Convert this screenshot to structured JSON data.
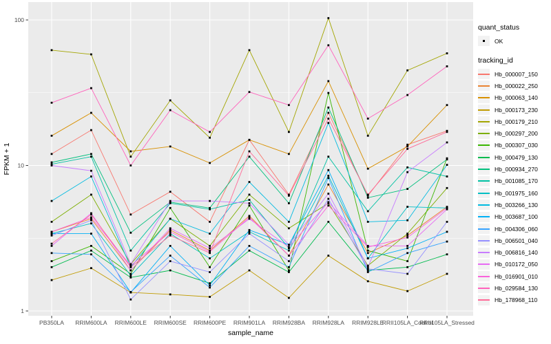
{
  "figure": {
    "y_axis_title": "FPKM + 1",
    "x_axis_title": "sample_name"
  },
  "legend": {
    "quant_status_title": "quant_status",
    "quant_status_items": [
      {
        "label": "OK",
        "marker": "black-point-icon"
      }
    ],
    "tracking_id_title": "tracking_id"
  },
  "chart_data": {
    "type": "line",
    "x_type": "categorical",
    "y_scale": "log10",
    "title": "",
    "xlabel": "sample_name",
    "ylabel": "FPKM + 1",
    "y_ticks": [
      1,
      10,
      100
    ],
    "y_minor_gridlines": [
      3.162,
      31.623
    ],
    "ylim": [
      1,
      126
    ],
    "grid": "on",
    "legend_position": "right",
    "panel_background": "#EBEBEB",
    "gridline_color": "#FFFFFF",
    "point_marker_color": "#000000",
    "categories": [
      "PB350LA",
      "RRIM600LA",
      "RRIM600LE",
      "RRIM600SE",
      "RRIM600PE",
      "RRIM901LA",
      "RRIM928BA",
      "RRIM928LA",
      "RRIM928LE",
      "RRII105LA_Control",
      "RRII105LA_Stressed"
    ],
    "series": [
      {
        "name": "Hb_000007_150",
        "color": "#F8766D",
        "values": [
          12,
          17.5,
          4.6,
          6.6,
          4.1,
          15,
          6.3,
          23,
          6.2,
          13.9,
          17.3
        ]
      },
      {
        "name": "Hb_000022_250",
        "color": "#EA8331",
        "values": [
          3.5,
          4.3,
          1.9,
          3.6,
          2.6,
          4.5,
          2.4,
          7.4,
          2.5,
          3.3,
          5.2
        ]
      },
      {
        "name": "Hb_000063_140",
        "color": "#D89000",
        "values": [
          16,
          23,
          12.5,
          13.5,
          10.4,
          15,
          12,
          38,
          9.5,
          13.5,
          26
        ]
      },
      {
        "name": "Hb_000173_230",
        "color": "#C09B00",
        "values": [
          1.63,
          1.97,
          1.34,
          1.3,
          1.25,
          1.9,
          1.23,
          2.4,
          1.6,
          1.37,
          1.8
        ]
      },
      {
        "name": "Hb_000179_210",
        "color": "#A3A500",
        "values": [
          62,
          58,
          11.5,
          28,
          15.5,
          62,
          17,
          103,
          16,
          45,
          59
        ]
      },
      {
        "name": "Hb_000297_200",
        "color": "#7CAE00",
        "values": [
          4.1,
          6.3,
          2.1,
          4.3,
          2.8,
          6.3,
          3.7,
          5.5,
          2.05,
          3.4,
          7.0
        ]
      },
      {
        "name": "Hb_000307_030",
        "color": "#39B600",
        "values": [
          2.2,
          2.8,
          1.8,
          5.1,
          2.0,
          5.3,
          1.9,
          31.5,
          2.6,
          2.2,
          11.2
        ]
      },
      {
        "name": "Hb_000479_130",
        "color": "#00BB4E",
        "values": [
          2.0,
          2.6,
          1.7,
          1.9,
          1.55,
          2.6,
          1.85,
          4.1,
          1.9,
          2.0,
          2.45
        ]
      },
      {
        "name": "Hb_000934_270",
        "color": "#00BF7D",
        "values": [
          10.5,
          12,
          3.45,
          5.6,
          5.1,
          11.5,
          5.5,
          25,
          6.0,
          6.9,
          11.0
        ]
      },
      {
        "name": "Hb_001085_170",
        "color": "#00C1A3",
        "values": [
          10.2,
          11.5,
          2.6,
          5.5,
          5.0,
          5.8,
          2.7,
          11.5,
          4.85,
          9.7,
          8.4
        ]
      },
      {
        "name": "Hb_001975_160",
        "color": "#00BFC4",
        "values": [
          3.4,
          4.0,
          1.75,
          3.4,
          2.3,
          3.5,
          2.6,
          8.5,
          2.3,
          5.2,
          5.1
        ]
      },
      {
        "name": "Hb_003266_130",
        "color": "#00BAE0",
        "values": [
          5.7,
          8.4,
          2.0,
          4.3,
          3.4,
          7.7,
          4.1,
          19.6,
          4.1,
          4.2,
          10.1
        ]
      },
      {
        "name": "Hb_003687_100",
        "color": "#00B0F6",
        "values": [
          3.4,
          3.4,
          1.34,
          2.8,
          1.5,
          3.6,
          2.85,
          9.3,
          2.3,
          2.7,
          3.5
        ]
      },
      {
        "name": "Hb_004306_060",
        "color": "#35A2FF",
        "values": [
          2.5,
          2.45,
          1.35,
          2.4,
          1.45,
          2.8,
          2.0,
          8.2,
          1.85,
          2.5,
          3.0
        ]
      },
      {
        "name": "Hb_006501_040",
        "color": "#9590FF",
        "values": [
          3.3,
          4.2,
          1.2,
          2.2,
          1.85,
          3.4,
          2.2,
          5.9,
          1.95,
          1.8,
          4.1
        ]
      },
      {
        "name": "Hb_006816_140",
        "color": "#C77CFF",
        "values": [
          10.0,
          9.2,
          2.1,
          5.7,
          5.7,
          5.5,
          2.85,
          6.4,
          2.0,
          9.0,
          14.4
        ]
      },
      {
        "name": "Hb_010172_050",
        "color": "#E76BF3",
        "values": [
          2.8,
          4.7,
          1.9,
          3.7,
          2.7,
          4.3,
          2.75,
          5.6,
          2.8,
          2.8,
          5.0
        ]
      },
      {
        "name": "Hb_016901_010",
        "color": "#FA62DB",
        "values": [
          3.5,
          4.4,
          2.05,
          3.5,
          2.55,
          4.4,
          2.4,
          5.3,
          2.75,
          3.2,
          5.1
        ]
      },
      {
        "name": "Hb_029584_130",
        "color": "#FF62BC",
        "values": [
          27,
          34,
          10,
          24,
          17,
          32,
          26,
          67,
          21,
          30.5,
          48
        ]
      },
      {
        "name": "Hb_178968_110",
        "color": "#FF6A98",
        "values": [
          2.9,
          4.6,
          2.0,
          3.3,
          2.5,
          12.5,
          6.2,
          21,
          6.3,
          13.0,
          17.0
        ]
      }
    ]
  }
}
